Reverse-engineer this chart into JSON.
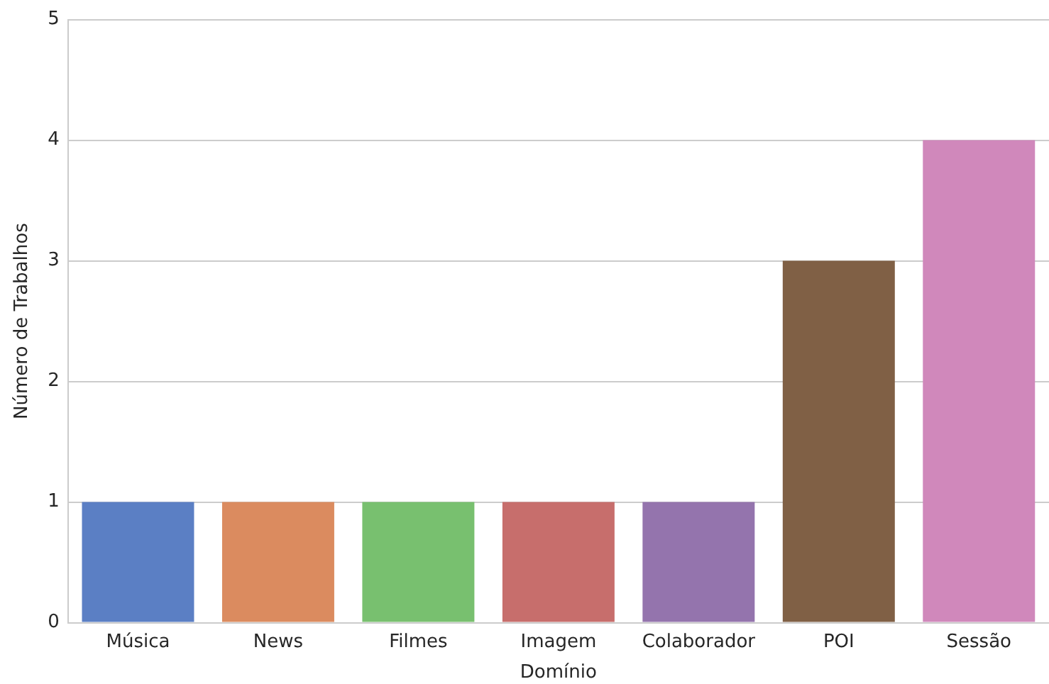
{
  "chart_data": {
    "type": "bar",
    "xlabel": "Domínio",
    "ylabel": "Número de Trabalhos",
    "categories": [
      "Música",
      "News",
      "Filmes",
      "Imagem",
      "Colaborador",
      "POI",
      "Sessão"
    ],
    "values": [
      1,
      1,
      1,
      1,
      1,
      3,
      4
    ],
    "colors": [
      "#5b7fc4",
      "#db8b5f",
      "#78c06f",
      "#c76e6c",
      "#9474ad",
      "#806045",
      "#d088bb"
    ],
    "ylim": [
      0,
      5
    ],
    "yticks": [
      0,
      1,
      2,
      3,
      4,
      5
    ],
    "grid": "y",
    "legend": false
  }
}
